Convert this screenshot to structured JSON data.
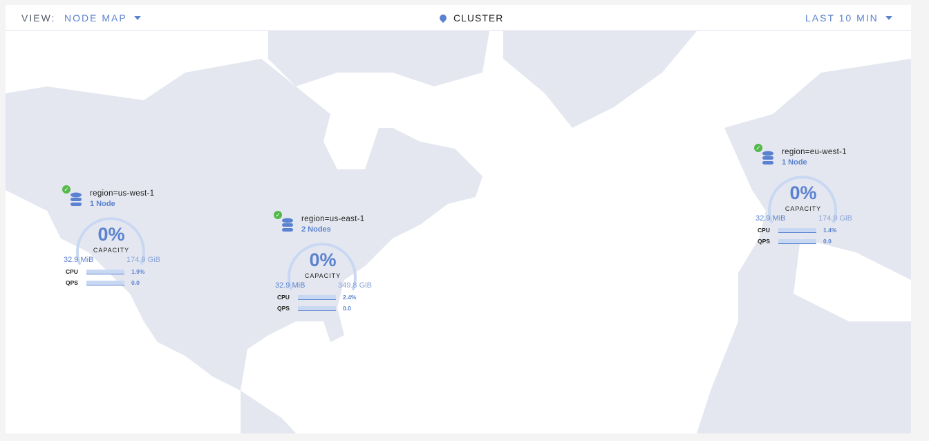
{
  "header": {
    "view_label": "VIEW:",
    "view_value": "NODE MAP",
    "center_label": "CLUSTER",
    "time_range": "LAST 10 MIN"
  },
  "colors": {
    "accent": "#5b82d0",
    "land": "#e4e7ef",
    "ok": "#54b948"
  },
  "regions": [
    {
      "name": "region=us-west-1",
      "nodes": "1 Node",
      "capacity": "0%",
      "capacity_label": "CAPACITY",
      "used": "32.9 MiB",
      "total": "174.9 GiB",
      "cpu_label": "CPU",
      "cpu": "1.9%",
      "qps_label": "QPS",
      "qps": "0.0",
      "status": "healthy"
    },
    {
      "name": "region=us-east-1",
      "nodes": "2 Nodes",
      "capacity": "0%",
      "capacity_label": "CAPACITY",
      "used": "32.9 MiB",
      "total": "349.8 GiB",
      "cpu_label": "CPU",
      "cpu": "2.4%",
      "qps_label": "QPS",
      "qps": "0.0",
      "status": "healthy"
    },
    {
      "name": "region=eu-west-1",
      "nodes": "1 Node",
      "capacity": "0%",
      "capacity_label": "CAPACITY",
      "used": "32.9 MiB",
      "total": "174.9 GiB",
      "cpu_label": "CPU",
      "cpu": "1.4%",
      "qps_label": "QPS",
      "qps": "0.0",
      "status": "healthy"
    }
  ]
}
